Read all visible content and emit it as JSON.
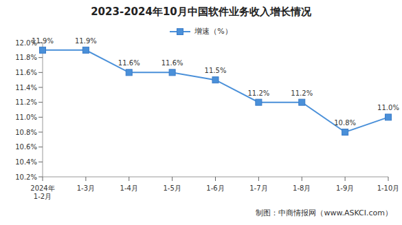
{
  "chart_data": {
    "type": "line",
    "title": "2023-2024年10月中国软件业务收入增长情况",
    "categories": [
      "2024年\n1-2月",
      "1-3月",
      "1-4月",
      "1-5月",
      "1-6月",
      "1-7月",
      "1-8月",
      "1-9月",
      "1-10月"
    ],
    "series": [
      {
        "name": "增速（%）",
        "color": "#4a90d9",
        "marker": "square",
        "line_style": "solid",
        "values": [
          11.9,
          11.9,
          11.6,
          11.6,
          11.5,
          11.2,
          11.2,
          10.8,
          11.0
        ],
        "value_labels": [
          "11.9%",
          "11.9%",
          "11.6%",
          "11.6%",
          "11.5%",
          "11.2%",
          "11.2%",
          "10.8%",
          "11.0%"
        ]
      }
    ],
    "ylim": [
      10.2,
      12.0
    ],
    "yticks": [
      {
        "value": 10.2,
        "label": "10.2%"
      },
      {
        "value": 10.4,
        "label": "10.4%"
      },
      {
        "value": 10.6,
        "label": "10.6%"
      },
      {
        "value": 10.8,
        "label": "10.8%"
      },
      {
        "value": 11.0,
        "label": "11.0%"
      },
      {
        "value": 11.2,
        "label": "11.2%"
      },
      {
        "value": 11.4,
        "label": "11.4%"
      },
      {
        "value": 11.6,
        "label": "11.6%"
      },
      {
        "value": 11.8,
        "label": "11.8%"
      },
      {
        "value": 12.0,
        "label": "12.0%"
      }
    ],
    "grid": false,
    "legend": "top",
    "data_labels": true,
    "annotations": [
      "制图：中商情报网（www.ASKCI.com）"
    ]
  }
}
